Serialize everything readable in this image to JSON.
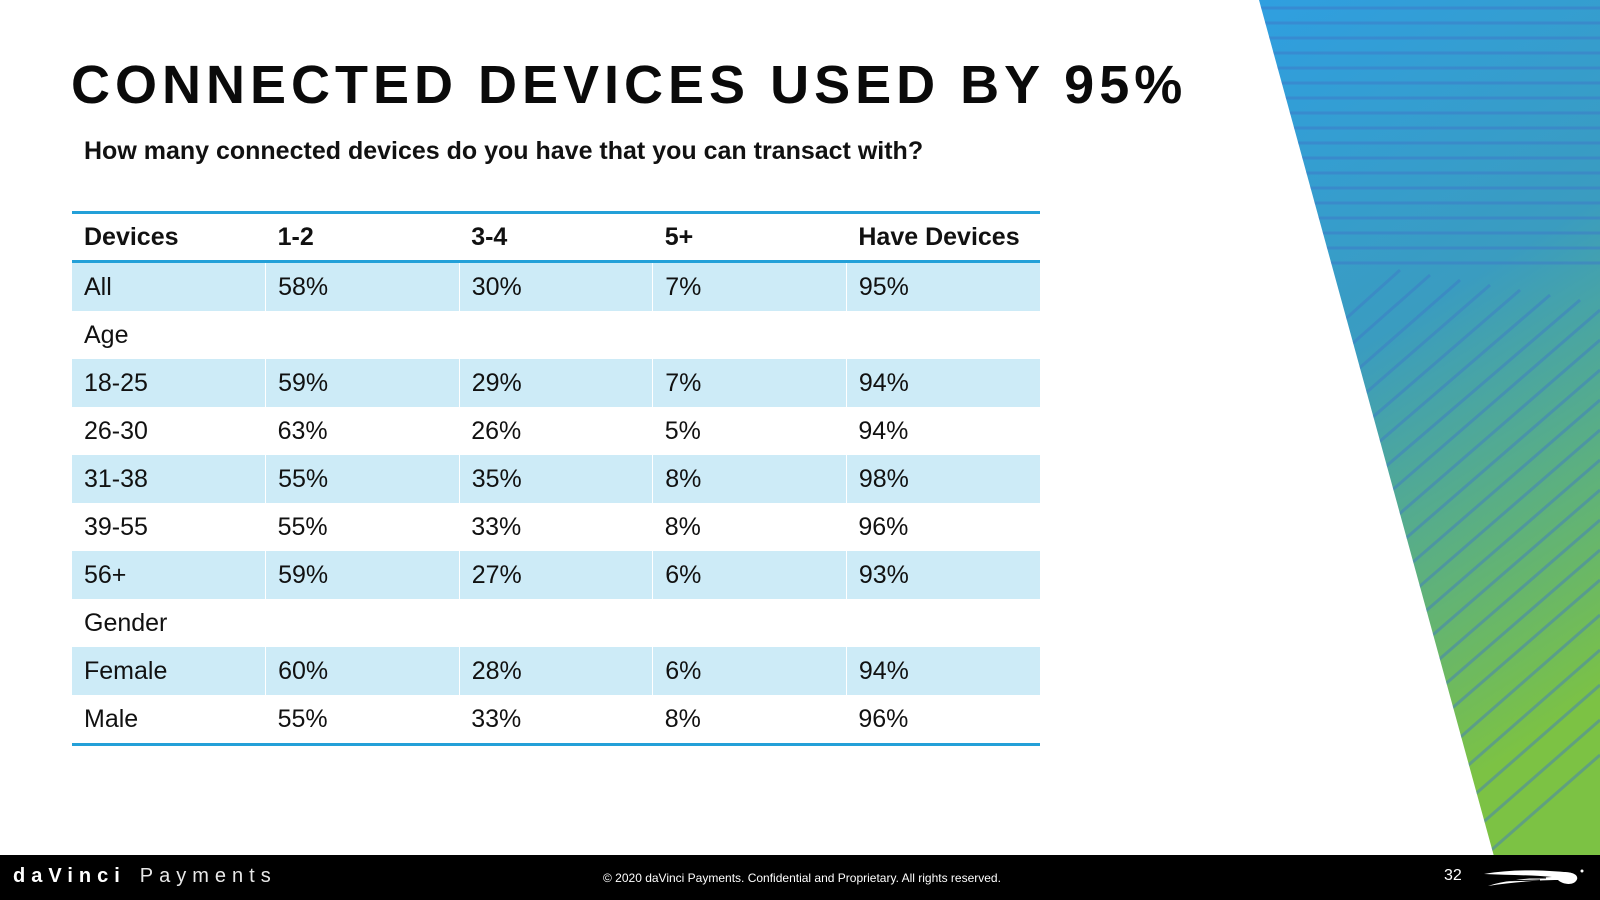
{
  "slide": {
    "title": "CONNECTED DEVICES USED BY 95%",
    "question": "How many connected devices do you have that you can transact with?"
  },
  "table": {
    "headers": [
      "Devices",
      "1-2",
      "3-4",
      "5+",
      "Have Devices"
    ],
    "rows": [
      [
        "All",
        "58%",
        "30%",
        "7%",
        "95%"
      ],
      [
        "Age",
        "",
        "",
        "",
        ""
      ],
      [
        "18-25",
        "59%",
        "29%",
        "7%",
        "94%"
      ],
      [
        "26-30",
        "63%",
        "26%",
        "5%",
        "94%"
      ],
      [
        "31-38",
        "55%",
        "35%",
        "8%",
        "98%"
      ],
      [
        "39-55",
        "55%",
        "33%",
        "8%",
        "96%"
      ],
      [
        "56+",
        "59%",
        "27%",
        "6%",
        "93%"
      ],
      [
        "Gender",
        "",
        "",
        "",
        ""
      ],
      [
        "Female",
        "60%",
        "28%",
        "6%",
        "94%"
      ],
      [
        "Male",
        "55%",
        "33%",
        "8%",
        "96%"
      ]
    ]
  },
  "footer": {
    "brand_primary": "daVinci",
    "brand_secondary": "Payments",
    "copyright": "© 2020 daVinci Payments.  Confidential and Proprietary.  All rights reserved.",
    "page_number": "32"
  },
  "colors": {
    "accent_blue": "#23a0d8",
    "row_shade": "#cdebf7",
    "gradient_top": "#2f9fe0",
    "gradient_bottom": "#7cc244",
    "footer_bg": "#000000"
  },
  "icons": [
    "davinci-wing-logo-icon"
  ]
}
